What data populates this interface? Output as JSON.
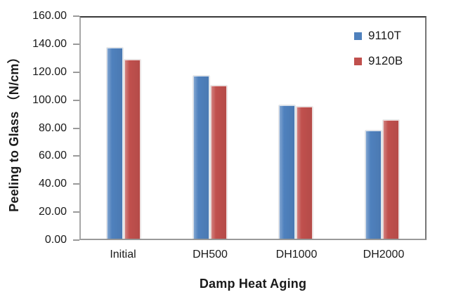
{
  "chart_data": {
    "type": "bar",
    "title": "",
    "categories": [
      "Initial",
      "DH500",
      "DH1000",
      "DH2000"
    ],
    "series": [
      {
        "name": "9110T",
        "color": "#4F81BD",
        "values": [
          136.5,
          116.5,
          95.5,
          77.0
        ]
      },
      {
        "name": "9120B",
        "color": "#C0504D",
        "values": [
          128.0,
          109.5,
          94.5,
          85.0
        ]
      }
    ],
    "xlabel": "Damp Heat Aging",
    "ylabel": "Peeling to Glass （N/cm）",
    "ylim": [
      0,
      160
    ],
    "ytick_step": 20,
    "ytick_labels": [
      "160.00",
      "140.00",
      "120.00",
      "100.00",
      "80.00",
      "60.00",
      "40.00",
      "20.00",
      "0.00"
    ],
    "grid": false,
    "legend_position": "top-right"
  },
  "colors": {
    "series_9110T": "#4F81BD",
    "series_9120B": "#C0504D",
    "axis_line": "#A8A8A8",
    "plot_border_top": "#383838",
    "plot_border_right": "#767676",
    "text": "#1A1A1A",
    "background": "#FFFFFF"
  }
}
